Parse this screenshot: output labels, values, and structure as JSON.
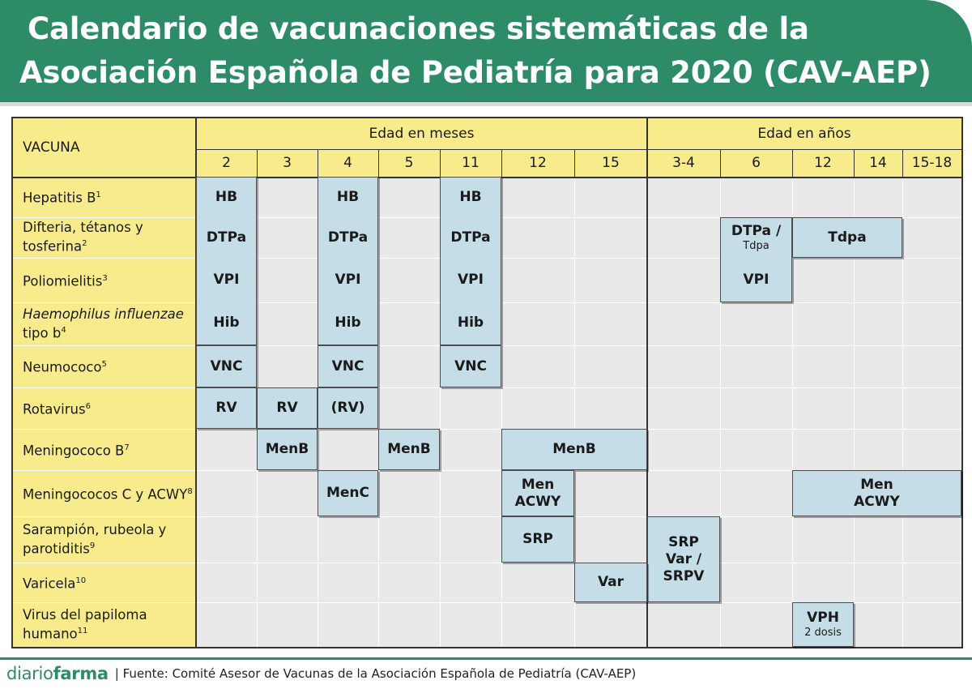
{
  "header": {
    "title_line1": "Calendario de vacunaciones sistemáticas de la",
    "title_line2": "Asociación Española de Pediatría para 2020 (CAV-AEP)"
  },
  "table": {
    "corner_label": "VACUNA",
    "group_months": "Edad en meses",
    "group_years": "Edad en años",
    "columns": [
      "2",
      "3",
      "4",
      "5",
      "11",
      "12",
      "15",
      "3-4",
      "6",
      "12",
      "14",
      "15-18"
    ],
    "rows": [
      {
        "name": "Hepatitis B",
        "sup": "1"
      },
      {
        "name": "Difteria, tétanos y tosferina",
        "sup": "2"
      },
      {
        "name": "Poliomielitis",
        "sup": "3"
      },
      {
        "name_italic": "Haemophilus influenzae",
        "name": " tipo b",
        "sup": "4"
      },
      {
        "name": "Neumococo",
        "sup": "5"
      },
      {
        "name": "Rotavirus",
        "sup": "6"
      },
      {
        "name": "Meningococo B",
        "sup": "7"
      },
      {
        "name": "Meningococos C y ACWY",
        "sup": "8"
      },
      {
        "name": "Sarampión, rubeola y parotiditis",
        "sup": "9"
      },
      {
        "name": "Varicela",
        "sup": "10"
      },
      {
        "name": "Virus del papiloma humano",
        "sup": "11"
      }
    ],
    "cells": [
      {
        "row": 0,
        "col": 0,
        "rowspan": 4,
        "lines": [
          "HB",
          "DTPa",
          "VPI",
          "Hib"
        ],
        "stacked": true
      },
      {
        "row": 0,
        "col": 2,
        "rowspan": 4,
        "lines": [
          "HB",
          "DTPa",
          "VPI",
          "Hib"
        ],
        "stacked": true
      },
      {
        "row": 0,
        "col": 4,
        "rowspan": 4,
        "lines": [
          "HB",
          "DTPa",
          "VPI",
          "Hib"
        ],
        "stacked": true
      },
      {
        "row": 1,
        "col": 8,
        "rowspan": 2,
        "lines": [
          "DTPa /",
          "Tdpa",
          "VPI"
        ],
        "stacked": "dtpa"
      },
      {
        "row": 1,
        "col": 9,
        "colspan": 2,
        "lines": [
          "Tdpa"
        ]
      },
      {
        "row": 4,
        "col": 0,
        "lines": [
          "VNC"
        ]
      },
      {
        "row": 4,
        "col": 2,
        "lines": [
          "VNC"
        ]
      },
      {
        "row": 4,
        "col": 4,
        "lines": [
          "VNC"
        ]
      },
      {
        "row": 5,
        "col": 0,
        "lines": [
          "RV"
        ]
      },
      {
        "row": 5,
        "col": 1,
        "lines": [
          "RV"
        ]
      },
      {
        "row": 5,
        "col": 2,
        "lines": [
          "(RV)"
        ]
      },
      {
        "row": 6,
        "col": 1,
        "lines": [
          "MenB"
        ]
      },
      {
        "row": 6,
        "col": 3,
        "lines": [
          "MenB"
        ]
      },
      {
        "row": 6,
        "col": 5,
        "colspan": 2,
        "lines": [
          "MenB"
        ]
      },
      {
        "row": 7,
        "col": 2,
        "lines": [
          "MenC"
        ]
      },
      {
        "row": 7,
        "col": 5,
        "lines": [
          "Men",
          "ACWY"
        ]
      },
      {
        "row": 7,
        "col": 9,
        "colspan": 3,
        "lines": [
          "Men",
          "ACWY"
        ]
      },
      {
        "row": 8,
        "col": 5,
        "lines": [
          "SRP"
        ]
      },
      {
        "row": 8,
        "col": 7,
        "rowspan": 2,
        "lines": [
          "SRP",
          "Var /",
          "SRPV"
        ]
      },
      {
        "row": 9,
        "col": 6,
        "lines": [
          "Var"
        ]
      },
      {
        "row": 10,
        "col": 9,
        "lines": [
          "VPH",
          "2 dosis"
        ]
      }
    ]
  },
  "footer": {
    "logo_part1": "diario",
    "logo_part2": "farma",
    "source": "| Fuente:  Comité Asesor de Vacunas de la Asociación Española de Pediatría (CAV-AEP)"
  },
  "colors": {
    "brand_green": "#2e8b67",
    "header_yellow": "#f7eb8c",
    "dose_box": "#c5dde6",
    "grid_gray": "#e9e9e9"
  }
}
